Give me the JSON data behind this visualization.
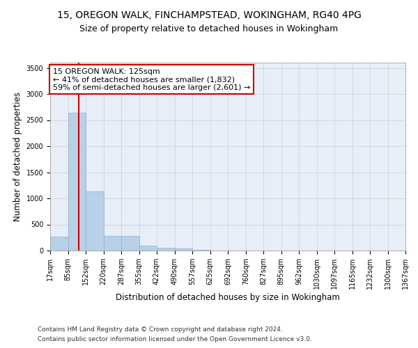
{
  "title_line1": "15, OREGON WALK, FINCHAMPSTEAD, WOKINGHAM, RG40 4PG",
  "title_line2": "Size of property relative to detached houses in Wokingham",
  "xlabel": "Distribution of detached houses by size in Wokingham",
  "ylabel": "Number of detached properties",
  "bar_color": "#b8d0e8",
  "bar_edge_color": "#8ab0d0",
  "grid_color": "#cccccc",
  "background_color": "#e8eef8",
  "bin_edges": [
    17,
    85,
    152,
    220,
    287,
    355,
    422,
    490,
    557,
    625,
    692,
    760,
    827,
    895,
    962,
    1030,
    1097,
    1165,
    1232,
    1300,
    1367
  ],
  "bar_heights": [
    270,
    2640,
    1140,
    280,
    280,
    90,
    55,
    35,
    8,
    5,
    3,
    2,
    2,
    1,
    1,
    1,
    0,
    0,
    0,
    0
  ],
  "property_size": 125,
  "red_line_color": "#cc0000",
  "annotation_line1": "15 OREGON WALK: 125sqm",
  "annotation_line2": "← 41% of detached houses are smaller (1,832)",
  "annotation_line3": "59% of semi-detached houses are larger (2,601) →",
  "annotation_box_color": "#ffffff",
  "annotation_box_edge": "#cc0000",
  "ylim": [
    0,
    3600
  ],
  "yticks": [
    0,
    500,
    1000,
    1500,
    2000,
    2500,
    3000,
    3500
  ],
  "footer_line1": "Contains HM Land Registry data © Crown copyright and database right 2024.",
  "footer_line2": "Contains public sector information licensed under the Open Government Licence v3.0.",
  "title_fontsize": 10,
  "subtitle_fontsize": 9,
  "axis_label_fontsize": 8.5,
  "tick_fontsize": 7,
  "annotation_fontsize": 8,
  "footer_fontsize": 6.5
}
